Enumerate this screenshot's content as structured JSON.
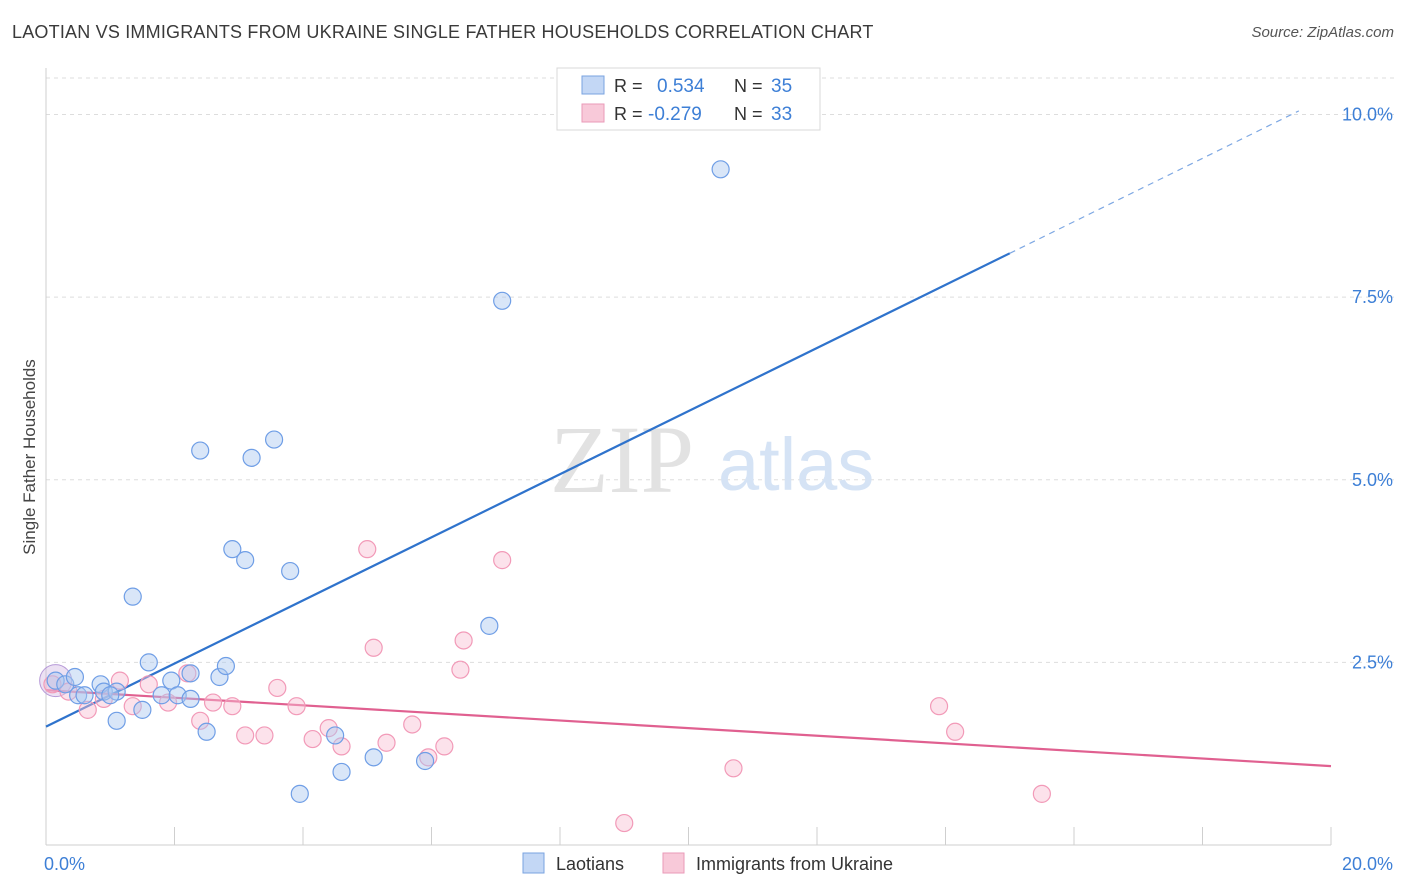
{
  "title": "LAOTIAN VS IMMIGRANTS FROM UKRAINE SINGLE FATHER HOUSEHOLDS CORRELATION CHART",
  "source": "Source: ZipAtlas.com",
  "watermark": {
    "zip": "ZIP",
    "atlas": "atlas"
  },
  "colors": {
    "blue": "#6f9ee6",
    "blue_line": "#2f73cc",
    "pink": "#f29ab8",
    "pink_line": "#e06090",
    "tick_label": "#3d7fd6"
  },
  "legend": {
    "rows": [
      {
        "r_label": "R =",
        "r_value": "0.534",
        "n_label": "N =",
        "n_value": "35"
      },
      {
        "r_label": "R =",
        "r_value": "-0.279",
        "n_label": "N =",
        "n_value": "33"
      }
    ],
    "bottom": [
      "Laotians",
      "Immigrants from Ukraine"
    ]
  },
  "chart_data": {
    "type": "scatter",
    "title": "LAOTIAN VS IMMIGRANTS FROM UKRAINE SINGLE FATHER HOUSEHOLDS CORRELATION CHART",
    "xlabel": "",
    "ylabel": "Single Father Households",
    "xlim": [
      0,
      20
    ],
    "ylim": [
      0,
      10.5
    ],
    "x_tick_labels": [
      "0.0%",
      "20.0%"
    ],
    "y_ticks": [
      2.5,
      5.0,
      7.5,
      10.0
    ],
    "y_tick_labels": [
      "2.5%",
      "5.0%",
      "7.5%",
      "10.0%"
    ],
    "grid": true,
    "legend_position": "top-center",
    "series": [
      {
        "name": "Laotians",
        "color": "#6f9ee6",
        "points": [
          [
            0.15,
            2.25
          ],
          [
            0.3,
            2.2
          ],
          [
            0.45,
            2.3
          ],
          [
            0.5,
            2.05
          ],
          [
            0.6,
            2.05
          ],
          [
            0.85,
            2.2
          ],
          [
            0.9,
            2.1
          ],
          [
            1.1,
            2.1
          ],
          [
            1.0,
            2.05
          ],
          [
            1.1,
            1.7
          ],
          [
            1.35,
            3.4
          ],
          [
            1.5,
            1.85
          ],
          [
            1.6,
            2.5
          ],
          [
            1.8,
            2.05
          ],
          [
            1.95,
            2.25
          ],
          [
            2.05,
            2.05
          ],
          [
            2.25,
            2.35
          ],
          [
            2.25,
            2.0
          ],
          [
            2.4,
            5.4
          ],
          [
            2.5,
            1.55
          ],
          [
            2.7,
            2.3
          ],
          [
            2.8,
            2.45
          ],
          [
            2.9,
            4.05
          ],
          [
            3.1,
            3.9
          ],
          [
            3.2,
            5.3
          ],
          [
            3.8,
            3.75
          ],
          [
            3.55,
            5.55
          ],
          [
            3.95,
            0.7
          ],
          [
            4.5,
            1.5
          ],
          [
            4.6,
            1.0
          ],
          [
            5.1,
            1.2
          ],
          [
            5.9,
            1.15
          ],
          [
            6.9,
            3.0
          ],
          [
            7.1,
            7.45
          ],
          [
            10.5,
            9.25
          ]
        ],
        "trend": {
          "x": [
            0,
            15.0
          ],
          "y": [
            1.62,
            8.1
          ],
          "dashed_extension": {
            "x": [
              15.0,
              19.5
            ],
            "y": [
              8.1,
              10.05
            ]
          }
        }
      },
      {
        "name": "Immigrants from Ukraine",
        "color": "#f29ab8",
        "points": [
          [
            0.1,
            2.2
          ],
          [
            0.35,
            2.1
          ],
          [
            0.65,
            1.85
          ],
          [
            0.9,
            2.0
          ],
          [
            1.15,
            2.25
          ],
          [
            1.35,
            1.9
          ],
          [
            1.6,
            2.2
          ],
          [
            1.9,
            1.95
          ],
          [
            2.2,
            2.35
          ],
          [
            2.4,
            1.7
          ],
          [
            2.6,
            1.95
          ],
          [
            2.9,
            1.9
          ],
          [
            3.1,
            1.5
          ],
          [
            3.4,
            1.5
          ],
          [
            3.6,
            2.15
          ],
          [
            3.9,
            1.9
          ],
          [
            4.15,
            1.45
          ],
          [
            4.4,
            1.6
          ],
          [
            4.6,
            1.35
          ],
          [
            5.0,
            4.05
          ],
          [
            5.1,
            2.7
          ],
          [
            5.3,
            1.4
          ],
          [
            5.7,
            1.65
          ],
          [
            5.95,
            1.2
          ],
          [
            6.2,
            1.35
          ],
          [
            6.45,
            2.4
          ],
          [
            6.5,
            2.8
          ],
          [
            7.1,
            3.9
          ],
          [
            9.0,
            0.3
          ],
          [
            10.7,
            1.05
          ],
          [
            13.9,
            1.9
          ],
          [
            14.15,
            1.55
          ],
          [
            15.5,
            0.7
          ]
        ],
        "trend": {
          "x": [
            0,
            20
          ],
          "y": [
            2.12,
            1.08
          ]
        }
      }
    ]
  }
}
